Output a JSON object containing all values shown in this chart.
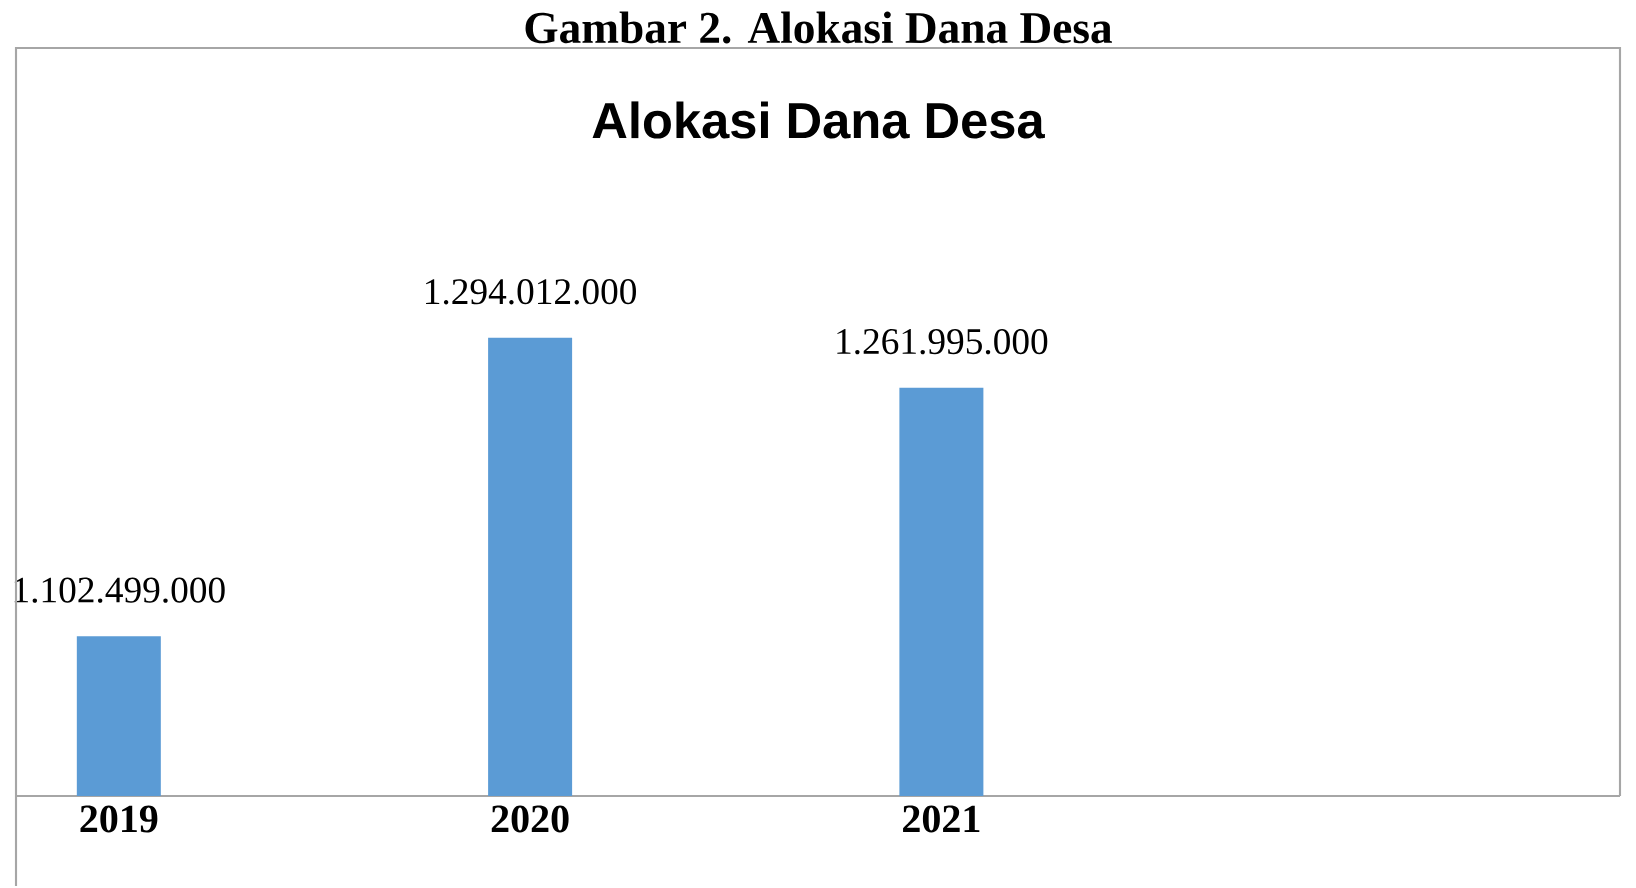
{
  "chart_data": {
    "type": "bar",
    "title": "Alokasi Dana Desa",
    "annotations": [
      "Gambar 2. Alokasi Dana Desa"
    ],
    "categories": [
      "2019",
      "2020",
      "2021"
    ],
    "values": [
      1102499000,
      1294012000,
      1261995000
    ],
    "value_labels": [
      "1.102.499.000",
      "1.294.012.000",
      "1.261.995.000"
    ],
    "color": "#5b9bd5",
    "ylim": [
      1000000000,
      1480000000
    ]
  }
}
